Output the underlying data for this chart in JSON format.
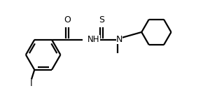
{
  "background": "#ffffff",
  "line_color": "#000000",
  "line_width": 1.6,
  "font_size": 8.5,
  "figsize": [
    3.2,
    1.53
  ],
  "dpi": 100,
  "xlim": [
    0,
    8.5
  ],
  "ylim": [
    0,
    4.2
  ]
}
